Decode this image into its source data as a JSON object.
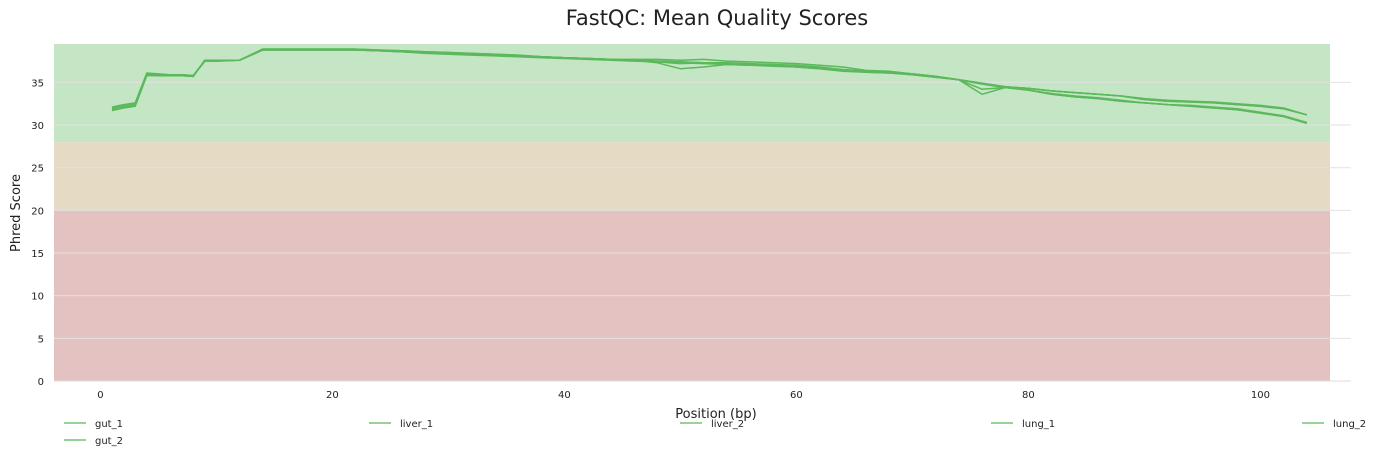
{
  "chart_data": {
    "type": "line",
    "title": "FastQC: Mean Quality Scores",
    "xlabel": "Position (bp)",
    "ylabel": "Phred Score",
    "xlim": [
      -4,
      106
    ],
    "ylim": [
      0,
      39.5
    ],
    "x_ticks": [
      0,
      20,
      40,
      60,
      80,
      100
    ],
    "y_ticks": [
      0,
      5,
      10,
      15,
      20,
      25,
      30,
      35
    ],
    "grid": true,
    "legend_position": "bottom",
    "bands": [
      {
        "from": 0,
        "to": 20,
        "color": "#e4c2c2"
      },
      {
        "from": 20,
        "to": 28,
        "color": "#e5dbc4"
      },
      {
        "from": 28,
        "to": 39.5,
        "color": "#c4e6c4"
      }
    ],
    "line_color": "#5cb85c",
    "series": [
      {
        "name": "gut_1",
        "x": [
          1,
          2,
          3,
          4,
          5,
          6,
          7,
          8,
          9,
          10,
          12,
          14,
          16,
          18,
          20,
          22,
          24,
          26,
          28,
          30,
          32,
          34,
          36,
          38,
          40,
          42,
          44,
          46,
          48,
          50,
          52,
          54,
          56,
          58,
          60,
          62,
          64,
          66,
          68,
          70,
          72,
          74,
          76,
          78,
          80,
          82,
          84,
          86,
          88,
          90,
          92,
          94,
          96,
          98,
          100,
          102,
          104
        ],
        "values": [
          32.1,
          32.4,
          32.6,
          36.1,
          36.0,
          35.9,
          35.9,
          35.8,
          37.5,
          37.5,
          37.6,
          38.9,
          38.9,
          38.9,
          38.9,
          38.9,
          38.8,
          38.7,
          38.6,
          38.5,
          38.4,
          38.3,
          38.2,
          38.0,
          37.9,
          37.8,
          37.7,
          37.6,
          37.3,
          36.6,
          36.8,
          37.1,
          37.0,
          37.0,
          36.8,
          36.6,
          36.3,
          36.2,
          36.1,
          35.9,
          35.6,
          35.3,
          34.9,
          34.5,
          34.3,
          34.0,
          33.8,
          33.6,
          33.4,
          33.1,
          32.9,
          32.8,
          32.7,
          32.5,
          32.3,
          32.0,
          31.2
        ]
      },
      {
        "name": "gut_2",
        "x": [
          1,
          2,
          3,
          4,
          5,
          6,
          7,
          8,
          9,
          10,
          12,
          14,
          16,
          18,
          20,
          22,
          24,
          26,
          28,
          30,
          32,
          34,
          36,
          38,
          40,
          42,
          44,
          46,
          48,
          50,
          52,
          54,
          56,
          58,
          60,
          62,
          64,
          66,
          68,
          70,
          72,
          74,
          76,
          78,
          80,
          82,
          84,
          86,
          88,
          90,
          92,
          94,
          96,
          98,
          100,
          102,
          104
        ],
        "values": [
          31.7,
          32.0,
          32.2,
          35.8,
          35.8,
          35.8,
          35.8,
          35.7,
          37.6,
          37.6,
          37.6,
          38.8,
          38.8,
          38.8,
          38.8,
          38.8,
          38.7,
          38.6,
          38.5,
          38.4,
          38.3,
          38.2,
          38.1,
          38.0,
          37.9,
          37.8,
          37.7,
          37.6,
          37.5,
          37.4,
          37.3,
          37.2,
          37.1,
          37.0,
          36.9,
          36.7,
          36.5,
          36.3,
          36.2,
          36.0,
          35.7,
          35.3,
          33.6,
          34.4,
          34.1,
          33.6,
          33.3,
          33.1,
          32.8,
          32.6,
          32.4,
          32.2,
          32.0,
          31.8,
          31.4,
          31.0,
          30.2
        ]
      },
      {
        "name": "liver_1",
        "x": [
          1,
          2,
          3,
          4,
          5,
          6,
          7,
          8,
          9,
          10,
          12,
          14,
          16,
          18,
          20,
          22,
          24,
          26,
          28,
          30,
          32,
          34,
          36,
          38,
          40,
          42,
          44,
          46,
          48,
          50,
          52,
          54,
          56,
          58,
          60,
          62,
          64,
          66,
          68,
          70,
          72,
          74,
          76,
          78,
          80,
          82,
          84,
          86,
          88,
          90,
          92,
          94,
          96,
          98,
          100,
          102,
          104
        ],
        "values": [
          32.0,
          32.3,
          32.5,
          36.0,
          35.9,
          35.9,
          35.9,
          35.8,
          37.5,
          37.6,
          37.6,
          38.9,
          38.9,
          38.9,
          38.9,
          38.9,
          38.7,
          38.6,
          38.5,
          38.4,
          38.3,
          38.2,
          38.1,
          38.0,
          37.9,
          37.8,
          37.7,
          37.7,
          37.7,
          37.6,
          37.7,
          37.5,
          37.4,
          37.3,
          37.2,
          37.0,
          36.8,
          36.4,
          36.3,
          36.0,
          35.7,
          35.3,
          34.9,
          34.5,
          34.3,
          34.0,
          33.8,
          33.6,
          33.4,
          33.0,
          32.8,
          32.7,
          32.6,
          32.4,
          32.2,
          31.9,
          31.2
        ]
      },
      {
        "name": "liver_2",
        "x": [
          1,
          2,
          3,
          4,
          5,
          6,
          7,
          8,
          9,
          10,
          12,
          14,
          16,
          18,
          20,
          22,
          24,
          26,
          28,
          30,
          32,
          34,
          36,
          38,
          40,
          42,
          44,
          46,
          48,
          50,
          52,
          54,
          56,
          58,
          60,
          62,
          64,
          66,
          68,
          70,
          72,
          74,
          76,
          78,
          80,
          82,
          84,
          86,
          88,
          90,
          92,
          94,
          96,
          98,
          100,
          102,
          104
        ],
        "values": [
          31.8,
          32.1,
          32.3,
          35.9,
          35.8,
          35.8,
          35.8,
          35.7,
          37.6,
          37.6,
          37.6,
          38.8,
          38.8,
          38.8,
          38.8,
          38.8,
          38.7,
          38.6,
          38.4,
          38.3,
          38.2,
          38.1,
          38.0,
          37.9,
          37.8,
          37.7,
          37.6,
          37.5,
          37.4,
          37.3,
          37.2,
          37.1,
          37.0,
          36.9,
          36.8,
          36.6,
          36.4,
          36.2,
          36.1,
          35.9,
          35.6,
          35.3,
          34.8,
          34.4,
          34.1,
          33.7,
          33.4,
          33.2,
          32.9,
          32.6,
          32.4,
          32.3,
          32.1,
          31.9,
          31.5,
          31.1,
          30.3
        ]
      },
      {
        "name": "lung_1",
        "x": [
          1,
          2,
          3,
          4,
          5,
          6,
          7,
          8,
          9,
          10,
          12,
          14,
          16,
          18,
          20,
          22,
          24,
          26,
          28,
          30,
          32,
          34,
          36,
          38,
          40,
          42,
          44,
          46,
          48,
          50,
          52,
          54,
          56,
          58,
          60,
          62,
          64,
          66,
          68,
          70,
          72,
          74,
          76,
          78,
          80,
          82,
          84,
          86,
          88,
          90,
          92,
          94,
          96,
          98,
          100,
          102,
          104
        ],
        "values": [
          32.0,
          32.3,
          32.5,
          36.0,
          35.9,
          35.9,
          35.9,
          35.8,
          37.5,
          37.5,
          37.6,
          38.9,
          38.9,
          38.9,
          38.9,
          38.9,
          38.8,
          38.7,
          38.6,
          38.5,
          38.4,
          38.3,
          38.2,
          38.0,
          37.9,
          37.8,
          37.7,
          37.6,
          37.4,
          37.2,
          37.3,
          37.3,
          37.2,
          37.1,
          37.0,
          36.8,
          36.5,
          36.3,
          36.2,
          36.0,
          35.7,
          35.3,
          34.9,
          34.5,
          34.3,
          34.0,
          33.8,
          33.6,
          33.4,
          33.0,
          32.8,
          32.7,
          32.6,
          32.4,
          32.2,
          31.9,
          31.2
        ]
      },
      {
        "name": "lung_2",
        "x": [
          1,
          2,
          3,
          4,
          5,
          6,
          7,
          8,
          9,
          10,
          12,
          14,
          16,
          18,
          20,
          22,
          24,
          26,
          28,
          30,
          32,
          34,
          36,
          38,
          40,
          42,
          44,
          46,
          48,
          50,
          52,
          54,
          56,
          58,
          60,
          62,
          64,
          66,
          68,
          70,
          72,
          74,
          76,
          78,
          80,
          82,
          84,
          86,
          88,
          90,
          92,
          94,
          96,
          98,
          100,
          102,
          104
        ],
        "values": [
          31.8,
          32.1,
          32.3,
          35.9,
          35.8,
          35.8,
          35.8,
          35.7,
          37.6,
          37.6,
          37.6,
          38.8,
          38.8,
          38.8,
          38.8,
          38.8,
          38.7,
          38.6,
          38.5,
          38.4,
          38.3,
          38.2,
          38.1,
          38.0,
          37.9,
          37.8,
          37.7,
          37.6,
          37.5,
          37.4,
          37.3,
          37.2,
          37.1,
          37.0,
          36.9,
          36.7,
          36.5,
          36.3,
          36.2,
          36.0,
          35.7,
          35.3,
          34.2,
          34.4,
          34.1,
          33.6,
          33.3,
          33.1,
          32.8,
          32.6,
          32.4,
          32.2,
          32.0,
          31.8,
          31.4,
          31.0,
          30.2
        ]
      }
    ]
  }
}
